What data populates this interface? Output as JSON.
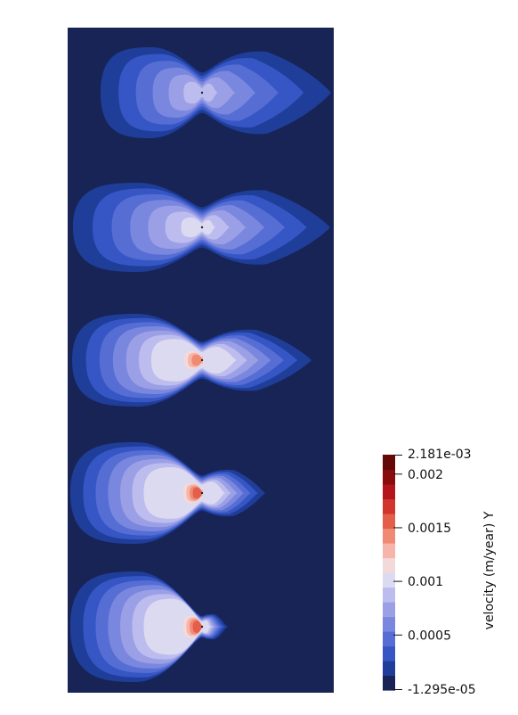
{
  "chart_data": {
    "type": "heatmap",
    "title": "",
    "colorbar": {
      "title": "velocity (m/year) Y",
      "min_label": "-1.295e-05",
      "max_label": "2.181e-03",
      "min": -1.295e-05,
      "max": 0.002181,
      "ticks": [
        {
          "value": 0.002,
          "label": "0.002"
        },
        {
          "value": 0.0015,
          "label": "0.0015"
        },
        {
          "value": 0.001,
          "label": "0.001"
        },
        {
          "value": 0.0005,
          "label": "0.0005"
        }
      ],
      "band_colors": [
        "#182456",
        "#1f3e9a",
        "#3556c4",
        "#566ed4",
        "#7a87de",
        "#9b9fe6",
        "#bcbcee",
        "#dcdaf0",
        "#f2dada",
        "#f7b4a8",
        "#f08a74",
        "#e35f4a",
        "#d0362b",
        "#b5151a",
        "#8a0d0d",
        "#640808"
      ]
    },
    "background_color": "#182456",
    "plumes": [
      {
        "id": 1,
        "peak_level": 6
      },
      {
        "id": 2,
        "peak_level": 7
      },
      {
        "id": 3,
        "peak_level": 10
      },
      {
        "id": 4,
        "peak_level": 11
      },
      {
        "id": 5,
        "peak_level": 11
      }
    ]
  }
}
